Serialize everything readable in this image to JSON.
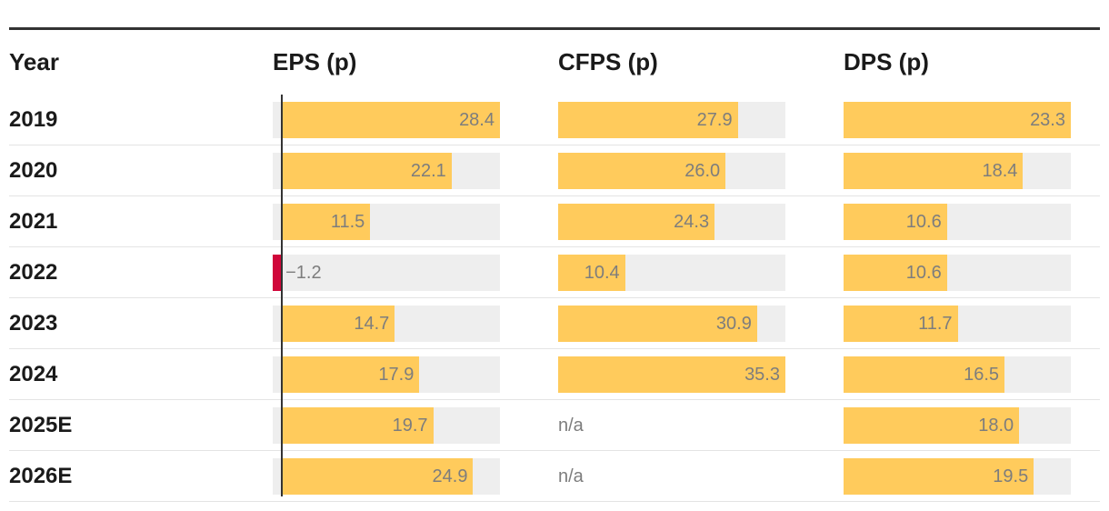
{
  "colors": {
    "bar": "#ffcb5c",
    "negative": "#d0073a",
    "track": "#eeeeee",
    "value_text": "#7d7d7d"
  },
  "chart_data": {
    "type": "table",
    "columns": [
      {
        "key": "eps",
        "label": "EPS (p)"
      },
      {
        "key": "cfps",
        "label": "CFPS (p)"
      },
      {
        "key": "dps",
        "label": "DPS (p)"
      }
    ],
    "year_header": "Year",
    "scales": {
      "eps": [
        -1.2,
        28.4
      ],
      "cfps": [
        0,
        35.3
      ],
      "dps": [
        0,
        23.3
      ]
    },
    "rows": [
      {
        "year": "2019",
        "eps": 28.4,
        "eps_label": "28.4",
        "cfps": 27.9,
        "cfps_label": "27.9",
        "dps": 23.3,
        "dps_label": "23.3"
      },
      {
        "year": "2020",
        "eps": 22.1,
        "eps_label": "22.1",
        "cfps": 26.0,
        "cfps_label": "26.0",
        "dps": 18.4,
        "dps_label": "18.4"
      },
      {
        "year": "2021",
        "eps": 11.5,
        "eps_label": "11.5",
        "cfps": 24.3,
        "cfps_label": "24.3",
        "dps": 10.6,
        "dps_label": "10.6"
      },
      {
        "year": "2022",
        "eps": -1.2,
        "eps_label": "−1.2",
        "cfps": 10.4,
        "cfps_label": "10.4",
        "dps": 10.6,
        "dps_label": "10.6"
      },
      {
        "year": "2023",
        "eps": 14.7,
        "eps_label": "14.7",
        "cfps": 30.9,
        "cfps_label": "30.9",
        "dps": 11.7,
        "dps_label": "11.7"
      },
      {
        "year": "2024",
        "eps": 17.9,
        "eps_label": "17.9",
        "cfps": 35.3,
        "cfps_label": "35.3",
        "dps": 16.5,
        "dps_label": "16.5"
      },
      {
        "year": "2025E",
        "eps": 19.7,
        "eps_label": "19.7",
        "cfps": null,
        "cfps_label": "n/a",
        "dps": 18.0,
        "dps_label": "18.0"
      },
      {
        "year": "2026E",
        "eps": 24.9,
        "eps_label": "24.9",
        "cfps": null,
        "cfps_label": "n/a",
        "dps": 19.5,
        "dps_label": "19.5"
      }
    ]
  }
}
